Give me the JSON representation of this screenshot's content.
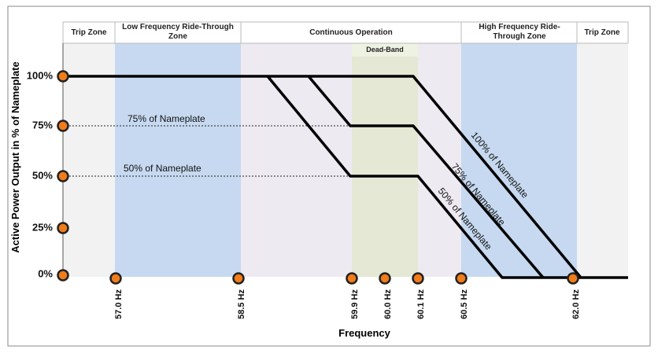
{
  "zones": [
    "Trip Zone",
    "Low Frequency Ride-Through Zone",
    "Continuous Operation",
    "High Frequency Ride-Through Zone",
    "Trip Zone"
  ],
  "dead_band": "Dead-Band",
  "y_axis": {
    "title": "Active Power Output in % of Nameplate",
    "labels": [
      "100%",
      "75%",
      "50%",
      "25%",
      "0%"
    ]
  },
  "x_axis": {
    "title": "Frequency",
    "labels": [
      "57.0 Hz",
      "58.5 Hz",
      "59.9 Hz",
      "60.0 Hz",
      "60.1 Hz",
      "60.5 Hz",
      "62.0 Hz"
    ]
  },
  "line_labels": {
    "level_75": "75% of Nameplate",
    "level_50": "50% of Nameplate",
    "slope_100": "100% of Nameplate",
    "slope_75": "75% of Nameplate",
    "slope_50": "50% of Nameplate"
  }
}
